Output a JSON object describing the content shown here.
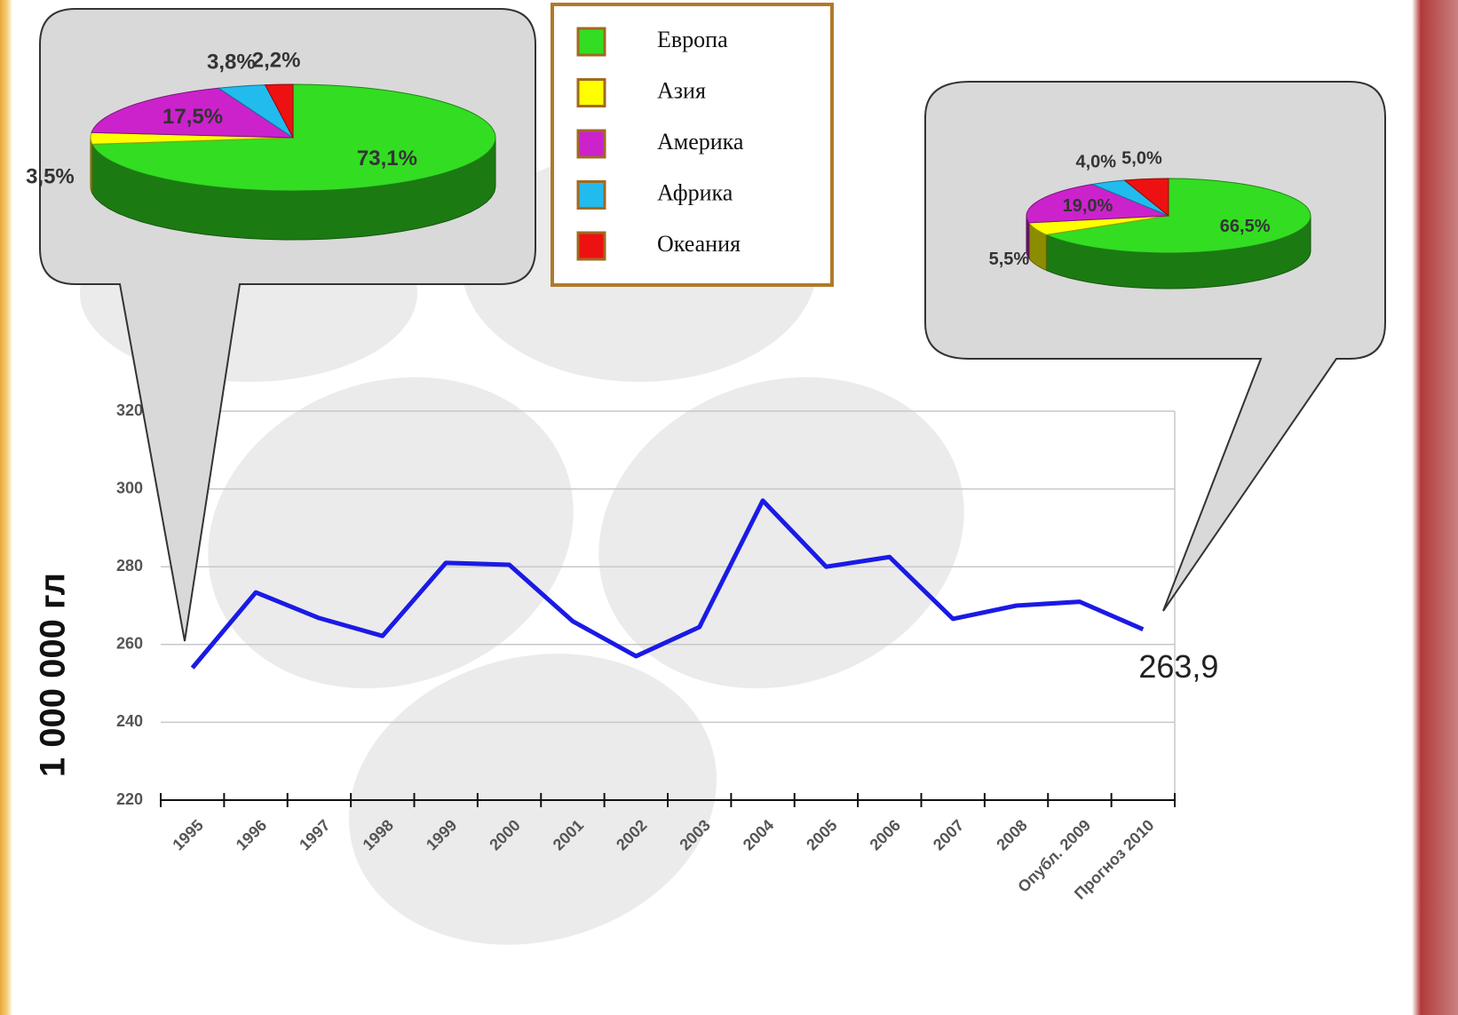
{
  "chart_data": [
    {
      "type": "line",
      "y_axis_label": "1 000 000 гл",
      "categories": [
        "1995",
        "1996",
        "1997",
        "1998",
        "1999",
        "2000",
        "2001",
        "2002",
        "2003",
        "2004",
        "2005",
        "2006",
        "2007",
        "2008",
        "Опубл. 2009",
        "Прогноз 2010"
      ],
      "values": [
        254,
        273.4,
        266.8,
        262.2,
        281,
        280.5,
        266,
        257,
        264.5,
        297,
        280,
        282.5,
        266.6,
        270,
        271,
        263.9
      ],
      "value_labels": [
        null,
        null,
        null,
        null,
        null,
        null,
        null,
        null,
        null,
        null,
        null,
        null,
        null,
        null,
        null,
        "263,9"
      ],
      "color": "#1a1ae6",
      "ylim": [
        220,
        320
      ],
      "yticks": [
        220,
        240,
        260,
        280,
        300,
        320
      ],
      "grid": true
    },
    {
      "type": "pie",
      "categories": [
        "Европа",
        "Азия",
        "Америка",
        "Африка",
        "Океания"
      ],
      "colors": [
        "#33dd22",
        "#ffff00",
        "#cc22cc",
        "#22bbee",
        "#ee1111"
      ],
      "values": [
        73.1,
        3.5,
        17.5,
        3.8,
        2.2
      ],
      "value_labels": [
        "73,1%",
        "3,5%",
        "17,5%",
        "3,8%",
        "2,2%"
      ]
    },
    {
      "type": "pie",
      "colors": [
        "#33dd22",
        "#ffff00",
        "#cc22cc",
        "#22bbee",
        "#ee1111"
      ],
      "values": [
        66.5,
        5.5,
        19.0,
        4.0,
        5.0
      ],
      "value_labels": [
        "66,5%",
        "5,5%",
        "19,0%",
        "4,0%",
        "5,0%"
      ]
    }
  ]
}
